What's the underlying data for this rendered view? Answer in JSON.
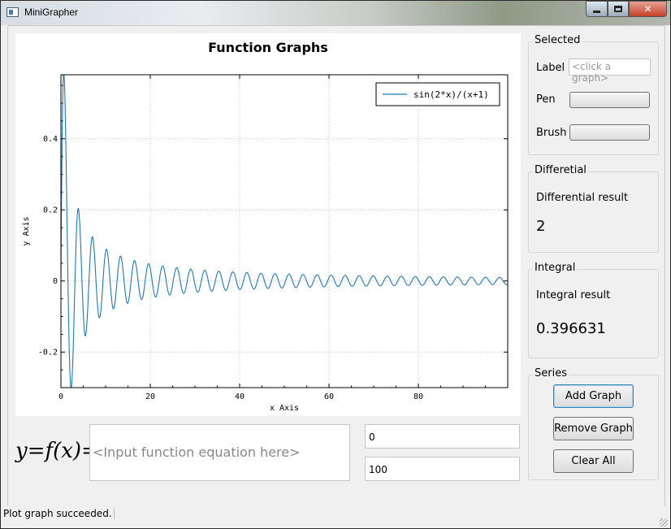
{
  "window": {
    "title": "MiniGrapher"
  },
  "chart_data": {
    "type": "line",
    "title": "Function Graphs",
    "xlabel": "x Axis",
    "ylabel": "y Axis",
    "xlim": [
      0,
      100
    ],
    "ylim": [
      -0.3,
      0.58
    ],
    "x_ticks": [
      0,
      20,
      40,
      60,
      80
    ],
    "y_ticks": [
      -0.2,
      0,
      0.2,
      0.4
    ],
    "x_tick_labels": [
      "0",
      "20",
      "40",
      "60",
      "80"
    ],
    "y_tick_labels": [
      "-0.2",
      "0",
      "0.2",
      "0.4"
    ],
    "grid": true,
    "legend_position": "top-right",
    "series": [
      {
        "name": "sin(2*x)/(x+1)",
        "expression": "sin(2*x)/(x+1)",
        "color": "#1f77b4"
      }
    ]
  },
  "formula": {
    "lhs": "y=f(x)="
  },
  "equation_input": {
    "placeholder": "<Input function equation here>"
  },
  "range": {
    "min": "0",
    "max": "100"
  },
  "selected": {
    "title": "Selected",
    "label_caption": "Label",
    "label_placeholder": "<click a graph>",
    "pen_caption": "Pen",
    "brush_caption": "Brush"
  },
  "differential": {
    "title": "Differetial",
    "caption": "Differential result",
    "value": "2"
  },
  "integral": {
    "title": "Integral",
    "caption": "Integral result",
    "value": "0.396631"
  },
  "series_panel": {
    "title": "Series",
    "add_label": "Add Graph",
    "remove_label": "Remove Graph",
    "clear_label": "Clear All"
  },
  "status": {
    "message": "Plot graph succeeded."
  }
}
